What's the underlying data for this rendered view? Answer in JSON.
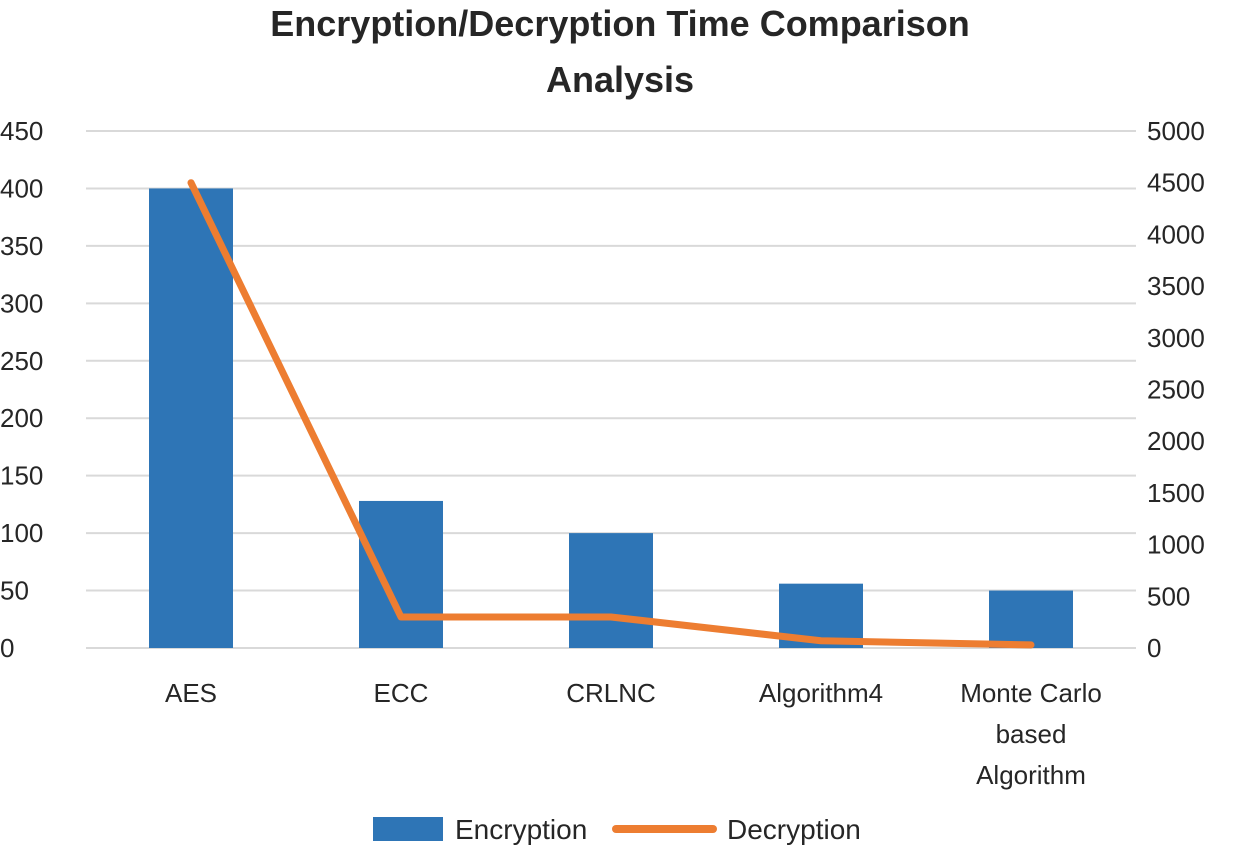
{
  "chart_data": {
    "type": "bar",
    "title_lines": [
      "Encryption/Decryption Time Comparison",
      "Analysis"
    ],
    "categories": [
      [
        "AES"
      ],
      [
        "ECC"
      ],
      [
        "CRLNC"
      ],
      [
        "Algorithm4"
      ],
      [
        "Monte Carlo",
        "based",
        "Algorithm"
      ]
    ],
    "series": [
      {
        "name": "Encryption",
        "type": "bar",
        "axis": "left",
        "color": "#2e75b6",
        "values": [
          400,
          128,
          100,
          56,
          50
        ]
      },
      {
        "name": "Decryption",
        "type": "line",
        "axis": "right",
        "color": "#ed7d31",
        "values": [
          4500,
          300,
          300,
          70,
          30
        ]
      }
    ],
    "y_left": {
      "min": 0,
      "max": 450,
      "step": 50,
      "ticks": [
        "0",
        "50",
        "100",
        "150",
        "200",
        "250",
        "300",
        "350",
        "400",
        "450"
      ]
    },
    "y_right": {
      "min": 0,
      "max": 5000,
      "step": 500,
      "ticks": [
        "0",
        "500",
        "1000",
        "1500",
        "2000",
        "2500",
        "3000",
        "3500",
        "4000",
        "4500",
        "5000"
      ]
    },
    "grid": true,
    "legend_position": "bottom"
  }
}
